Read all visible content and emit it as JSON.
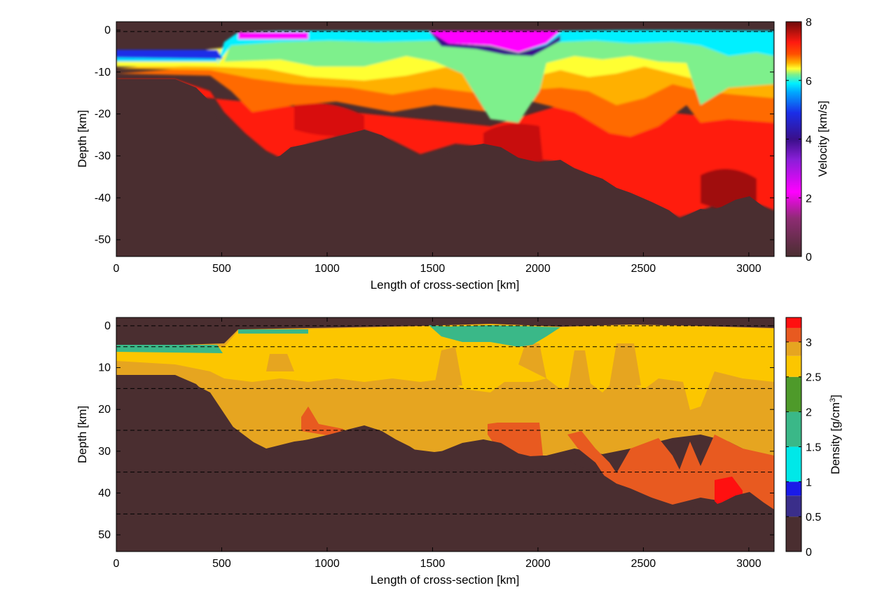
{
  "chart_data": [
    {
      "type": "heatmap",
      "name": "velocity-section",
      "xlabel": "Length of cross-section [km]",
      "ylabel": "Depth [km]",
      "xlim": [
        0,
        3120
      ],
      "ylim": [
        -54,
        2
      ],
      "x_ticks": [
        0,
        500,
        1000,
        1500,
        2000,
        2500,
        3000
      ],
      "y_ticks": [
        0,
        -10,
        -20,
        -30,
        -40,
        -50
      ],
      "colorbar": {
        "label": "Velocity [km/s]",
        "range": [
          0,
          8
        ],
        "ticks": [
          0,
          2,
          4,
          6,
          8
        ],
        "stops": [
          {
            "v": 0,
            "color": "#4a2e30"
          },
          {
            "v": 1.3,
            "color": "#8e2c73"
          },
          {
            "v": 2.2,
            "color": "#ff00ff"
          },
          {
            "v": 3.3,
            "color": "#8a1ed8"
          },
          {
            "v": 4.0,
            "color": "#3a0f8a"
          },
          {
            "v": 4.9,
            "color": "#1a2ee8"
          },
          {
            "v": 5.6,
            "color": "#00a8ff"
          },
          {
            "v": 5.9,
            "color": "#00f0ff"
          },
          {
            "v": 6.2,
            "color": "#7ef08c"
          },
          {
            "v": 6.4,
            "color": "#ffff30"
          },
          {
            "v": 6.6,
            "color": "#ffb000"
          },
          {
            "v": 6.9,
            "color": "#ff5000"
          },
          {
            "v": 7.3,
            "color": "#ff1a10"
          },
          {
            "v": 8.0,
            "color": "#6e0a0a"
          }
        ]
      },
      "ref_lines": [
        0
      ]
    },
    {
      "type": "heatmap",
      "name": "density-section",
      "xlabel": "Length of cross-section [km]",
      "ylabel": "Depth [km]",
      "xlim": [
        0,
        3120
      ],
      "ylim": [
        54,
        -2
      ],
      "x_ticks": [
        0,
        500,
        1000,
        1500,
        2000,
        2500,
        3000
      ],
      "y_ticks": [
        0,
        10,
        20,
        30,
        40,
        50
      ],
      "colorbar": {
        "label": "Density [g/cm",
        "label_sup": "3",
        "label_end": "]",
        "range": [
          0,
          3.35
        ],
        "ticks": [
          "0",
          "0.5",
          "1",
          "1.5",
          "2",
          "2.5",
          "3"
        ],
        "bands": [
          {
            "from": 0,
            "to": 0.5,
            "color": "#4a2e30"
          },
          {
            "from": 0.5,
            "to": 0.8,
            "color": "#3a2e8a"
          },
          {
            "from": 0.8,
            "to": 1.0,
            "color": "#1a1ae8"
          },
          {
            "from": 1.0,
            "to": 1.5,
            "color": "#00e8e8"
          },
          {
            "from": 1.5,
            "to": 2.0,
            "color": "#3ab888"
          },
          {
            "from": 2.0,
            "to": 2.5,
            "color": "#4e9a2a"
          },
          {
            "from": 2.5,
            "to": 2.8,
            "color": "#fcc600"
          },
          {
            "from": 2.8,
            "to": 3.0,
            "color": "#e6a520"
          },
          {
            "from": 3.0,
            "to": 3.2,
            "color": "#e85a20"
          },
          {
            "from": 3.2,
            "to": 3.35,
            "color": "#ff1010"
          }
        ]
      },
      "ref_lines": [
        0,
        5,
        15,
        25,
        35,
        45
      ]
    }
  ]
}
